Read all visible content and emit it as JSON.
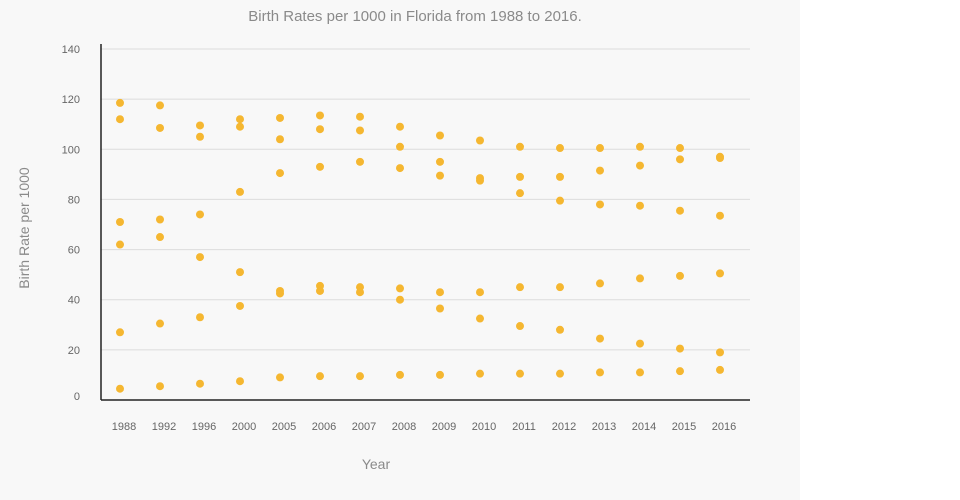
{
  "chart_data": {
    "type": "scatter",
    "title": "Birth Rates per 1000 in Florida from 1988 to 2016.",
    "xlabel": "Year",
    "ylabel": "Birth Rate per 1000",
    "categories": [
      "1988",
      "1992",
      "1996",
      "2000",
      "2005",
      "2006",
      "2007",
      "2008",
      "2009",
      "2010",
      "2011",
      "2012",
      "2013",
      "2014",
      "2015",
      "2016"
    ],
    "yticks": [
      "0",
      "20",
      "40",
      "60",
      "80",
      "100",
      "120",
      "140"
    ],
    "ylim": [
      0,
      140
    ],
    "grid": true,
    "point_color": "#f5b731",
    "series": [
      {
        "values": [
          118.5,
          117.5,
          109.5,
          112,
          112.5,
          113.5,
          113,
          109,
          105.5,
          103.5,
          101,
          100.5,
          100.5,
          101,
          100.5,
          97
        ]
      },
      {
        "values": [
          112,
          108.5,
          105,
          109,
          104,
          108,
          107.5,
          101,
          95,
          88.5,
          89,
          89,
          91.5,
          93.5,
          96,
          96.5
        ]
      },
      {
        "values": [
          71,
          72,
          74,
          83,
          90.5,
          93,
          95,
          92.5,
          89.5,
          87.5,
          82.5,
          79.5,
          78,
          77.5,
          75.5,
          73.5
        ]
      },
      {
        "values": [
          62,
          65,
          57,
          51,
          43.5,
          45.5,
          45,
          44.5,
          43,
          43,
          45,
          45,
          46.5,
          48.5,
          49.5,
          50.5
        ]
      },
      {
        "values": [
          27,
          30.5,
          33,
          37.5,
          42.5,
          43.5,
          43,
          40,
          36.5,
          32.5,
          29.5,
          28,
          24.5,
          22.5,
          20.5,
          19
        ]
      },
      {
        "values": [
          4.5,
          5.5,
          6.5,
          7.5,
          9,
          9.5,
          9.5,
          10,
          10,
          10.5,
          10.5,
          10.5,
          11,
          11,
          11.5,
          12
        ]
      }
    ]
  }
}
